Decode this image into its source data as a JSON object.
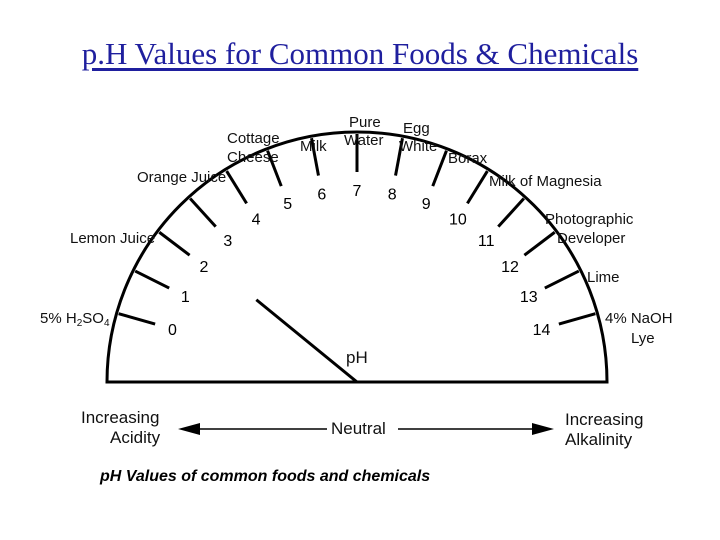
{
  "title": "p.H Values for Common Foods & Chemicals",
  "gauge": {
    "scale_min": 0,
    "scale_max": 14,
    "scale_numbers": [
      "0",
      "1",
      "2",
      "3",
      "4",
      "5",
      "6",
      "7",
      "8",
      "9",
      "10",
      "11",
      "12",
      "13",
      "14"
    ],
    "center_label": "pH",
    "pointer_value": 2.2
  },
  "substances": {
    "h2so4": {
      "prefix": "5% H",
      "sub1": "2",
      "mid": "SO",
      "sub2": "4"
    },
    "lemon_juice": "Lemon Juice",
    "orange_juice": "Orange Juice",
    "cottage_cheese": [
      "Cottage",
      "Cheese"
    ],
    "milk": "Milk",
    "pure_water": [
      "Pure",
      "Water"
    ],
    "egg_white": [
      "Egg",
      "White"
    ],
    "borax": "Borax",
    "milk_of_magnesia": "Milk of Magnesia",
    "photographic_developer": [
      "Photographic",
      "Developer"
    ],
    "lime": "Lime",
    "naoh": "4% NaOH",
    "lye": "Lye"
  },
  "scale_bar": {
    "left": [
      "Increasing",
      "Acidity"
    ],
    "center": "Neutral",
    "right": [
      "Increasing",
      "Alkalinity"
    ]
  },
  "caption": "pH Values of common foods and chemicals"
}
